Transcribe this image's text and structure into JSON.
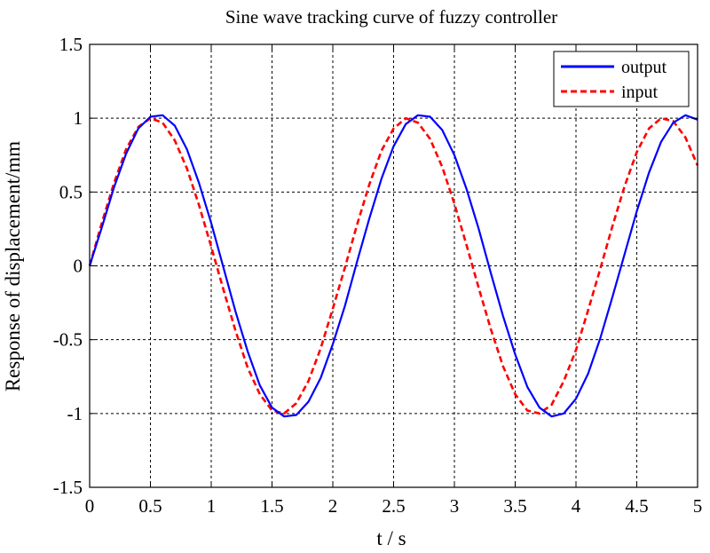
{
  "chart_data": {
    "type": "line",
    "title": "Sine wave tracking curve of fuzzy controller",
    "xlabel": "t / s",
    "ylabel": "Response of displacement/mm",
    "xlim": [
      0,
      5
    ],
    "ylim": [
      -1.5,
      1.5
    ],
    "xticks": [
      0,
      0.5,
      1,
      1.5,
      2,
      2.5,
      3,
      3.5,
      4,
      4.5,
      5
    ],
    "xtick_labels": [
      "0",
      "0.5",
      "1",
      "1.5",
      "2",
      "2.5",
      "3",
      "3.5",
      "4",
      "4.5",
      "5"
    ],
    "yticks": [
      -1.5,
      -1,
      -0.5,
      0,
      0.5,
      1,
      1.5
    ],
    "ytick_labels": [
      "-1.5",
      "-1",
      "-0.5",
      "0",
      "0.5",
      "1",
      "1.5"
    ],
    "grid": true,
    "legend_position": "top-right",
    "series": [
      {
        "name": "output",
        "color": "#0000ff",
        "style": "solid",
        "x": [
          0,
          0.1,
          0.2,
          0.3,
          0.4,
          0.5,
          0.6,
          0.7,
          0.8,
          0.9,
          1.0,
          1.1,
          1.2,
          1.3,
          1.4,
          1.5,
          1.6,
          1.7,
          1.8,
          1.9,
          2.0,
          2.1,
          2.2,
          2.3,
          2.4,
          2.5,
          2.6,
          2.7,
          2.8,
          2.9,
          3.0,
          3.1,
          3.2,
          3.3,
          3.4,
          3.5,
          3.6,
          3.7,
          3.8,
          3.9,
          4.0,
          4.1,
          4.2,
          4.3,
          4.4,
          4.5,
          4.6,
          4.7,
          4.8,
          4.9,
          5.0
        ],
        "y": [
          0.0,
          0.26,
          0.53,
          0.76,
          0.93,
          1.01,
          1.02,
          0.95,
          0.79,
          0.56,
          0.29,
          -0.01,
          -0.31,
          -0.58,
          -0.81,
          -0.96,
          -1.02,
          -1.01,
          -0.92,
          -0.76,
          -0.53,
          -0.27,
          0.03,
          0.32,
          0.59,
          0.81,
          0.96,
          1.02,
          1.01,
          0.92,
          0.75,
          0.52,
          0.25,
          -0.05,
          -0.34,
          -0.6,
          -0.82,
          -0.96,
          -1.02,
          -1.0,
          -0.9,
          -0.73,
          -0.49,
          -0.21,
          0.08,
          0.37,
          0.63,
          0.84,
          0.97,
          1.02,
          0.99
        ]
      },
      {
        "name": "input",
        "color": "#ff0000",
        "style": "dashed",
        "x": [
          0,
          0.1,
          0.2,
          0.3,
          0.4,
          0.5,
          0.6,
          0.7,
          0.8,
          0.9,
          1.0,
          1.1,
          1.2,
          1.3,
          1.4,
          1.5,
          1.6,
          1.7,
          1.8,
          1.9,
          2.0,
          2.1,
          2.2,
          2.3,
          2.4,
          2.5,
          2.6,
          2.7,
          2.8,
          2.9,
          3.0,
          3.1,
          3.2,
          3.3,
          3.4,
          3.5,
          3.6,
          3.7,
          3.8,
          3.9,
          4.0,
          4.1,
          4.2,
          4.3,
          4.4,
          4.5,
          4.6,
          4.7,
          4.8,
          4.9,
          5.0
        ],
        "y": [
          0.0,
          0.29,
          0.56,
          0.79,
          0.94,
          1.0,
          0.97,
          0.85,
          0.66,
          0.41,
          0.13,
          -0.16,
          -0.44,
          -0.69,
          -0.87,
          -0.98,
          -1.0,
          -0.93,
          -0.78,
          -0.56,
          -0.29,
          -0.01,
          0.28,
          0.55,
          0.78,
          0.93,
          1.0,
          0.97,
          0.86,
          0.67,
          0.42,
          0.14,
          -0.15,
          -0.43,
          -0.68,
          -0.87,
          -0.98,
          -1.0,
          -0.94,
          -0.78,
          -0.57,
          -0.3,
          -0.02,
          0.27,
          0.54,
          0.77,
          0.93,
          1.0,
          0.98,
          0.87,
          0.68
        ]
      }
    ]
  }
}
